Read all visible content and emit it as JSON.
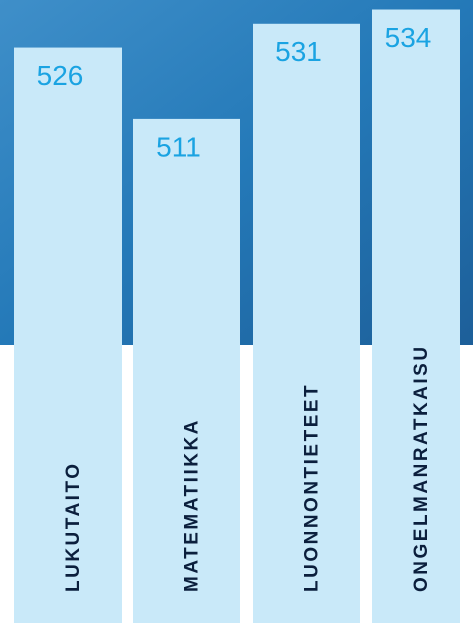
{
  "chart_data": {
    "type": "bar",
    "categories": [
      "LUKUTAITO",
      "MATEMATIIKKA",
      "LUONNONTIETEET",
      "ONGELMANRATKAISU"
    ],
    "values": [
      526,
      511,
      531,
      534
    ],
    "color": "#c9e9f9",
    "ylim": [
      405,
      536
    ]
  }
}
